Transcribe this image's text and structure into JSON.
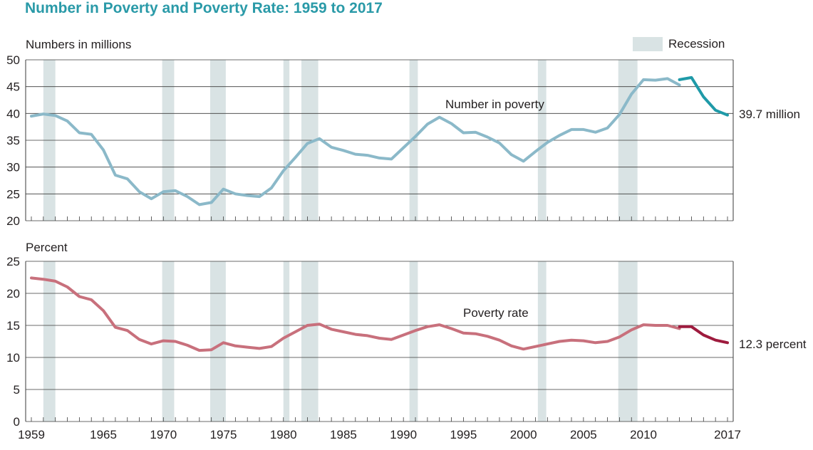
{
  "title": "Number in Poverty and Poverty Rate: 1959 to 2017",
  "legend": {
    "label": "Recession",
    "color": "#d9e3e4"
  },
  "recessions": [
    [
      1960,
      1961
    ],
    [
      1969.9,
      1970.9
    ],
    [
      1973.9,
      1975.2
    ],
    [
      1980,
      1980.5
    ],
    [
      1981.5,
      1982.9
    ],
    [
      1990.5,
      1991.2
    ],
    [
      2001.2,
      2001.9
    ],
    [
      2007.9,
      2009.5
    ]
  ],
  "chart_data": [
    {
      "type": "line",
      "title": "",
      "ylabel": "Numbers in millions",
      "ylim": [
        20,
        50
      ],
      "yticks": [
        "20",
        "25",
        "30",
        "35",
        "40",
        "45",
        "50"
      ],
      "annotation": "Number in poverty",
      "end_label": "39.7 million",
      "series": [
        {
          "color": "#8bb9c9",
          "x": [
            1959,
            1960,
            1961,
            1962,
            1963,
            1964,
            1965,
            1966,
            1967,
            1968,
            1969,
            1970,
            1971,
            1972,
            1973,
            1974,
            1975,
            1976,
            1977,
            1978,
            1979,
            1980,
            1981,
            1982,
            1983,
            1984,
            1985,
            1986,
            1987,
            1988,
            1989,
            1990,
            1991,
            1992,
            1993,
            1994,
            1995,
            1996,
            1997,
            1998,
            1999,
            2000,
            2001,
            2002,
            2003,
            2004,
            2005,
            2006,
            2007,
            2008,
            2009,
            2010,
            2011,
            2012,
            2013
          ],
          "y": [
            39.5,
            39.9,
            39.6,
            38.6,
            36.4,
            36.1,
            33.2,
            28.5,
            27.8,
            25.4,
            24.1,
            25.4,
            25.6,
            24.5,
            23.0,
            23.4,
            25.9,
            25.0,
            24.7,
            24.5,
            26.1,
            29.3,
            31.8,
            34.4,
            35.3,
            33.7,
            33.1,
            32.4,
            32.2,
            31.7,
            31.5,
            33.6,
            35.7,
            38.0,
            39.3,
            38.1,
            36.4,
            36.5,
            35.6,
            34.5,
            32.3,
            31.1,
            32.9,
            34.6,
            35.9,
            37.0,
            37.0,
            36.5,
            37.3,
            39.8,
            43.6,
            46.3,
            46.2,
            46.5,
            45.3
          ]
        },
        {
          "color": "#1f9aa8",
          "x": [
            2013,
            2014,
            2015,
            2016,
            2017
          ],
          "y": [
            46.3,
            46.7,
            43.1,
            40.6,
            39.7
          ]
        }
      ]
    },
    {
      "type": "line",
      "title": "",
      "ylabel": "Percent",
      "ylim": [
        0,
        25
      ],
      "yticks": [
        "0",
        "5",
        "10",
        "15",
        "20",
        "25"
      ],
      "annotation": "Poverty rate",
      "end_label": "12.3 percent",
      "series": [
        {
          "color": "#c8707c",
          "x": [
            1959,
            1960,
            1961,
            1962,
            1963,
            1964,
            1965,
            1966,
            1967,
            1968,
            1969,
            1970,
            1971,
            1972,
            1973,
            1974,
            1975,
            1976,
            1977,
            1978,
            1979,
            1980,
            1981,
            1982,
            1983,
            1984,
            1985,
            1986,
            1987,
            1988,
            1989,
            1990,
            1991,
            1992,
            1993,
            1994,
            1995,
            1996,
            1997,
            1998,
            1999,
            2000,
            2001,
            2002,
            2003,
            2004,
            2005,
            2006,
            2007,
            2008,
            2009,
            2010,
            2011,
            2012,
            2013
          ],
          "y": [
            22.4,
            22.2,
            21.9,
            21.0,
            19.5,
            19.0,
            17.3,
            14.7,
            14.2,
            12.8,
            12.1,
            12.6,
            12.5,
            11.9,
            11.1,
            11.2,
            12.3,
            11.8,
            11.6,
            11.4,
            11.7,
            13.0,
            14.0,
            15.0,
            15.2,
            14.4,
            14.0,
            13.6,
            13.4,
            13.0,
            12.8,
            13.5,
            14.2,
            14.8,
            15.1,
            14.5,
            13.8,
            13.7,
            13.3,
            12.7,
            11.8,
            11.3,
            11.7,
            12.1,
            12.5,
            12.7,
            12.6,
            12.3,
            12.5,
            13.2,
            14.3,
            15.1,
            15.0,
            15.0,
            14.5
          ]
        },
        {
          "color": "#9e1b3e",
          "x": [
            2013,
            2014,
            2015,
            2016,
            2017
          ],
          "y": [
            14.8,
            14.8,
            13.5,
            12.7,
            12.3
          ]
        }
      ]
    }
  ],
  "x_axis": {
    "xlim": [
      1959,
      2017
    ],
    "tick_labels": [
      "1959",
      "1965",
      "1970",
      "1975",
      "1980",
      "1985",
      "1990",
      "1995",
      "2000",
      "2005",
      "2010",
      "2017"
    ],
    "tick_values": [
      1959,
      1965,
      1970,
      1975,
      1980,
      1985,
      1990,
      1995,
      2000,
      2005,
      2010,
      2017
    ]
  }
}
